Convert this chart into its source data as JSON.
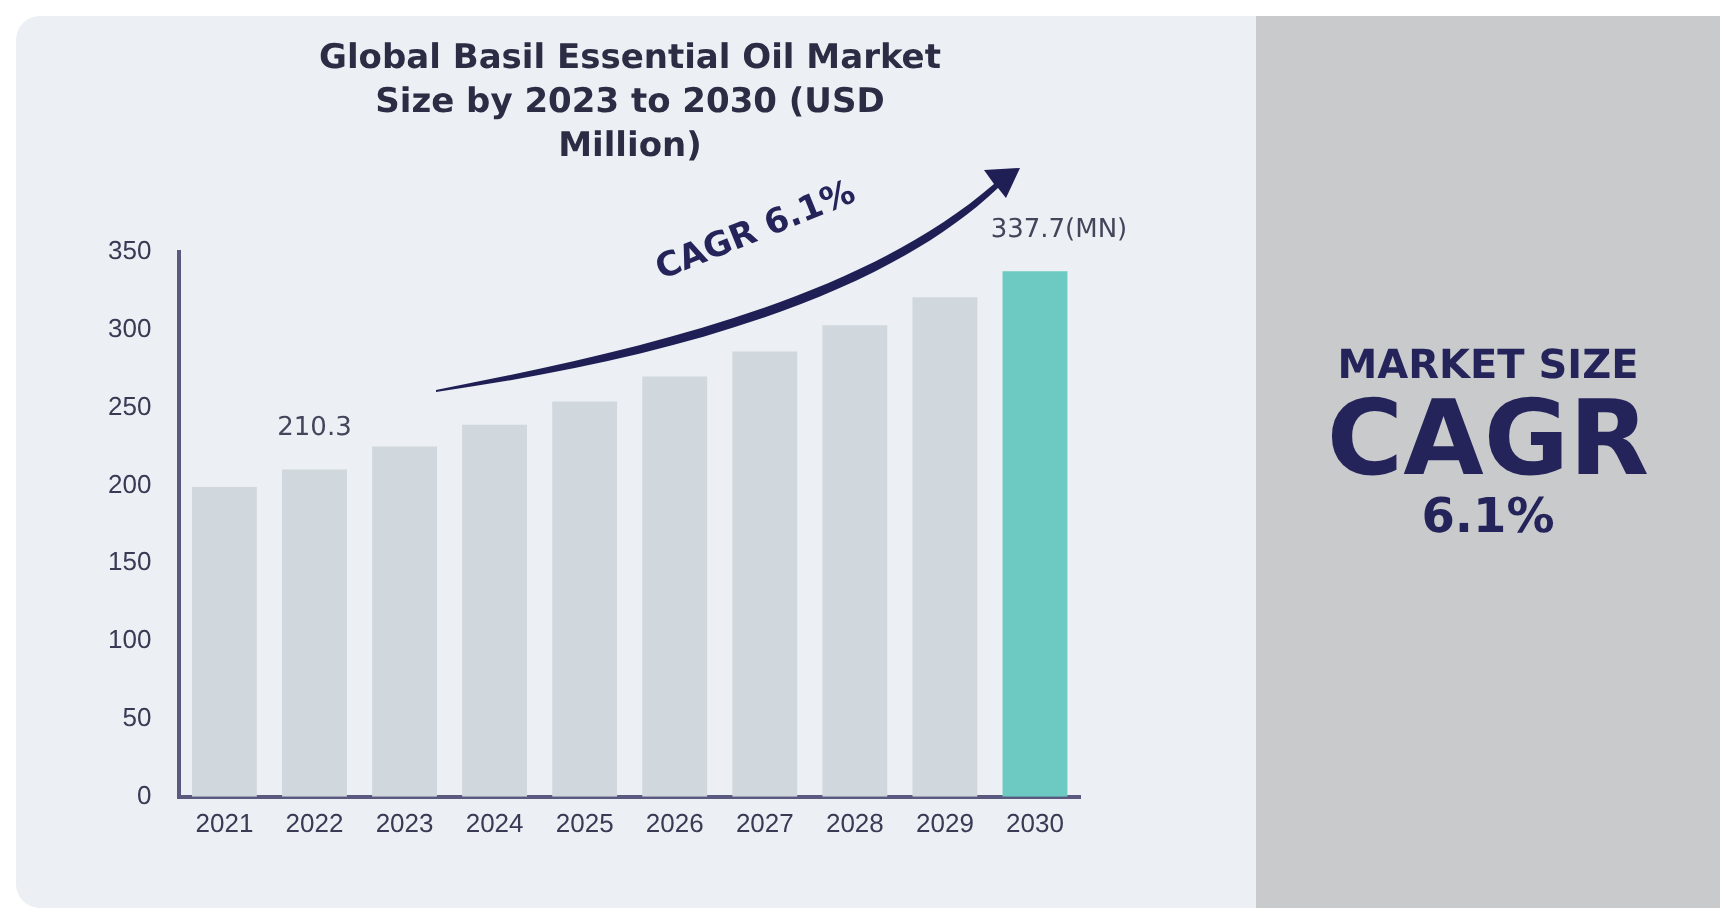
{
  "chart_data": {
    "type": "bar",
    "title": "Global Basil Essential Oil Market Size by 2023 to 2030 (USD Million)",
    "categories": [
      "2021",
      "2022",
      "2023",
      "2024",
      "2025",
      "2026",
      "2027",
      "2028",
      "2029",
      "2030"
    ],
    "values": [
      199,
      210.3,
      225,
      239,
      254,
      270,
      286,
      303,
      321,
      337.7
    ],
    "colors": [
      "#d0d7dd",
      "#d0d7dd",
      "#d0d7dd",
      "#d0d7dd",
      "#d0d7dd",
      "#d0d7dd",
      "#d0d7dd",
      "#d0d7dd",
      "#d0d7dd",
      "#6ccac2"
    ],
    "value_labels": [
      null,
      "210.3",
      null,
      null,
      null,
      null,
      null,
      null,
      null,
      "337.7(MN)"
    ],
    "ylim": [
      0,
      350
    ],
    "yticks": [
      0,
      50,
      100,
      150,
      200,
      250,
      300,
      350
    ],
    "grid": false,
    "legend": false,
    "annotations": [
      "CAGR 6.1%",
      "MARKET SIZE",
      "CAGR",
      "6.1%"
    ]
  }
}
